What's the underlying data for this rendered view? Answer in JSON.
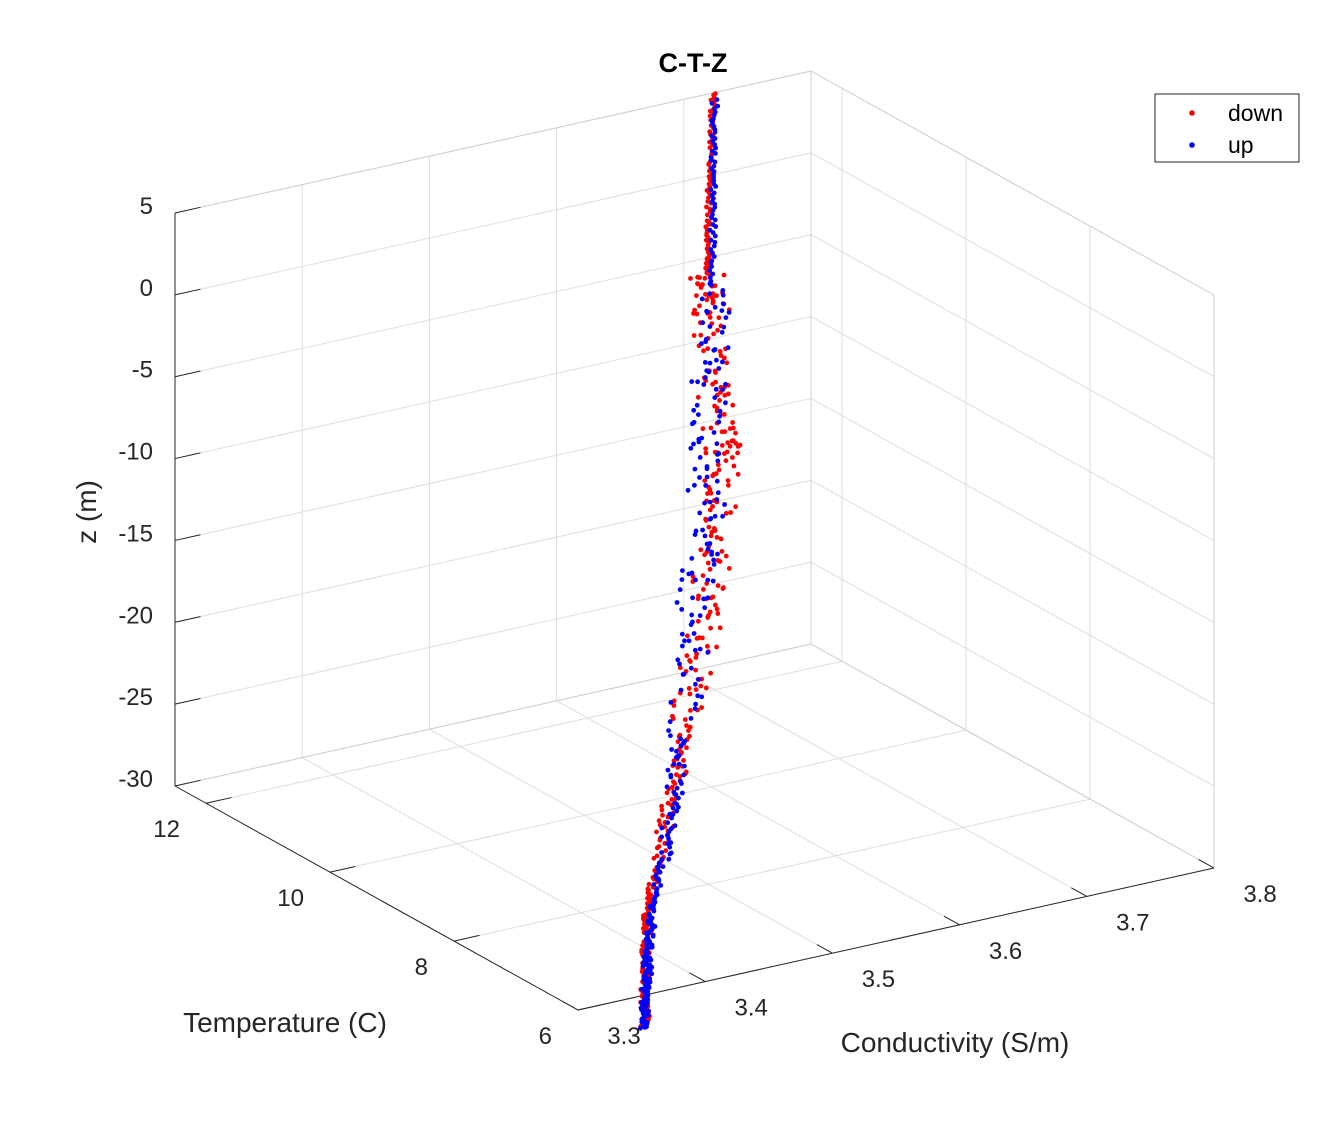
{
  "chart_data": {
    "type": "scatter",
    "title": "C-T-Z",
    "xlabel": "Conductivity (S/m)",
    "ylabel": "Temperature (C)",
    "zlabel": "z (m)",
    "xlim": [
      3.3,
      3.8
    ],
    "ylim": [
      6,
      12.5
    ],
    "zlim": [
      -30,
      5
    ],
    "x_ticks": [
      "3.3",
      "3.4",
      "3.5",
      "3.6",
      "3.7",
      "3.8"
    ],
    "y_ticks": [
      "6",
      "8",
      "10",
      "12"
    ],
    "z_ticks": [
      "5",
      "0",
      "-5",
      "-10",
      "-15",
      "-20",
      "-25",
      "-30"
    ],
    "grid": true,
    "legend_position": "top-right",
    "series": [
      {
        "name": "down",
        "color": "#ff0000",
        "points": [
          [
            3.698,
            11.97,
            6.5
          ],
          [
            3.695,
            11.95,
            5.0
          ],
          [
            3.693,
            11.93,
            3.0
          ],
          [
            3.692,
            11.92,
            1.0
          ],
          [
            3.691,
            11.91,
            -1.0
          ],
          [
            3.69,
            11.9,
            -2.5
          ],
          [
            3.689,
            11.88,
            -3.5
          ],
          [
            3.688,
            11.86,
            -4.2
          ],
          [
            3.685,
            11.8,
            -5.0
          ],
          [
            3.68,
            11.7,
            -5.6
          ],
          [
            3.672,
            11.5,
            -6.2
          ],
          [
            3.66,
            11.2,
            -7.0
          ],
          [
            3.648,
            10.9,
            -7.8
          ],
          [
            3.64,
            10.7,
            -8.5
          ],
          [
            3.632,
            10.5,
            -9.5
          ],
          [
            3.628,
            10.4,
            -10.5
          ],
          [
            3.64,
            10.6,
            -11.5
          ],
          [
            3.63,
            10.45,
            -12.5
          ],
          [
            3.62,
            10.3,
            -13.5
          ],
          [
            3.605,
            10.05,
            -14.5
          ],
          [
            3.59,
            9.8,
            -15.5
          ],
          [
            3.58,
            9.65,
            -16.5
          ],
          [
            3.57,
            9.5,
            -17.5
          ],
          [
            3.555,
            9.25,
            -18.5
          ],
          [
            3.54,
            9.0,
            -19.5
          ],
          [
            3.525,
            8.8,
            -20.5
          ],
          [
            3.505,
            8.5,
            -21.5
          ],
          [
            3.485,
            8.15,
            -22.5
          ],
          [
            3.46,
            7.8,
            -23.5
          ],
          [
            3.435,
            7.4,
            -24.5
          ],
          [
            3.415,
            7.1,
            -25.5
          ],
          [
            3.4,
            6.88,
            -26.5
          ],
          [
            3.39,
            6.72,
            -27.5
          ],
          [
            3.385,
            6.64,
            -28.5
          ],
          [
            3.382,
            6.6,
            -29.5
          ],
          [
            3.38,
            6.56,
            -30.5
          ],
          [
            3.379,
            6.54,
            -31.5
          ],
          [
            3.378,
            6.52,
            -32.5
          ],
          [
            3.377,
            6.5,
            -33.5
          ]
        ]
      },
      {
        "name": "up",
        "color": "#0000ff",
        "points": [
          [
            3.7,
            12.0,
            6.0
          ],
          [
            3.697,
            11.95,
            4.0
          ],
          [
            3.693,
            11.88,
            2.0
          ],
          [
            3.69,
            11.82,
            0.0
          ],
          [
            3.684,
            11.7,
            -2.0
          ],
          [
            3.675,
            11.52,
            -4.0
          ],
          [
            3.664,
            11.3,
            -5.5
          ],
          [
            3.652,
            11.1,
            -7.0
          ],
          [
            3.64,
            10.9,
            -8.0
          ],
          [
            3.632,
            10.72,
            -9.5
          ],
          [
            3.625,
            10.58,
            -11.0
          ],
          [
            3.618,
            10.45,
            -12.5
          ],
          [
            3.608,
            10.25,
            -14.0
          ],
          [
            3.596,
            10.05,
            -15.5
          ],
          [
            3.585,
            9.88,
            -16.5
          ],
          [
            3.572,
            9.68,
            -18.0
          ],
          [
            3.556,
            9.42,
            -19.5
          ],
          [
            3.535,
            9.08,
            -21.0
          ],
          [
            3.508,
            8.62,
            -22.5
          ],
          [
            3.478,
            8.1,
            -23.5
          ],
          [
            3.45,
            7.6,
            -24.5
          ],
          [
            3.42,
            7.12,
            -25.5
          ],
          [
            3.4,
            6.82,
            -26.5
          ],
          [
            3.39,
            6.68,
            -27.5
          ],
          [
            3.385,
            6.6,
            -28.5
          ],
          [
            3.382,
            6.56,
            -29.5
          ],
          [
            3.38,
            6.53,
            -30.5
          ],
          [
            3.378,
            6.51,
            -31.5
          ],
          [
            3.377,
            6.5,
            -32.5
          ],
          [
            3.376,
            6.48,
            -33.5
          ]
        ]
      }
    ]
  }
}
